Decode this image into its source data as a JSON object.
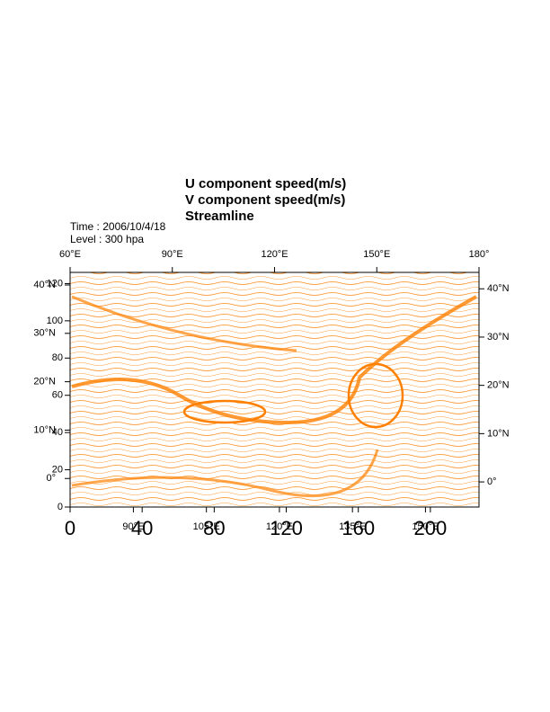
{
  "chart_data": {
    "type": "streamline",
    "title_lines": [
      "U component speed(m/s)",
      "V component speed(m/s)",
      "Streamline"
    ],
    "annotations": [
      "Time : 2006/10/4/18",
      "Level : 300 hpa"
    ],
    "color": "#ff8000",
    "axes": [
      {
        "side": "top",
        "lim": [
          60,
          180
        ],
        "ticks": [
          {
            "value": 60,
            "label": "60°E"
          },
          {
            "value": 90,
            "label": "90°E"
          },
          {
            "value": 120,
            "label": "120°E"
          },
          {
            "value": 150,
            "label": "150°E"
          },
          {
            "value": 180,
            "label": "180°"
          }
        ]
      },
      {
        "side": "right",
        "lim": [
          -5.2,
          43.4
        ],
        "ticks": [
          {
            "value": 40,
            "label": "40°N"
          },
          {
            "value": 30,
            "label": "30°N"
          },
          {
            "value": 20,
            "label": "20°N"
          },
          {
            "value": 10,
            "label": "10°N"
          },
          {
            "value": 0,
            "label": "0°"
          }
        ]
      },
      {
        "side": "left",
        "lim": [
          -5.9,
          42.6
        ],
        "ticks": [
          {
            "value": 40,
            "label": "40°N"
          },
          {
            "value": 30,
            "label": "30°N"
          },
          {
            "value": 20,
            "label": "20°N"
          },
          {
            "value": 10,
            "label": "10°N"
          },
          {
            "value": 0,
            "label": "0°"
          }
        ]
      },
      {
        "side": "left",
        "lim": [
          0,
          126
        ],
        "ticks": [
          0,
          20,
          40,
          60,
          80,
          100,
          120
        ]
      },
      {
        "side": "bottom",
        "lim": [
          0,
          227
        ],
        "ticks": [
          0,
          40,
          80,
          120,
          160,
          200
        ]
      },
      {
        "side": "bottom",
        "lim": [
          77,
          161
        ],
        "ticks": [
          {
            "value": 90,
            "label": "90°E"
          },
          {
            "value": 105,
            "label": "105°E"
          },
          {
            "value": 120,
            "label": "120°E"
          },
          {
            "value": 135,
            "label": "135°E"
          },
          {
            "value": 150,
            "label": "150°E"
          }
        ]
      }
    ]
  }
}
